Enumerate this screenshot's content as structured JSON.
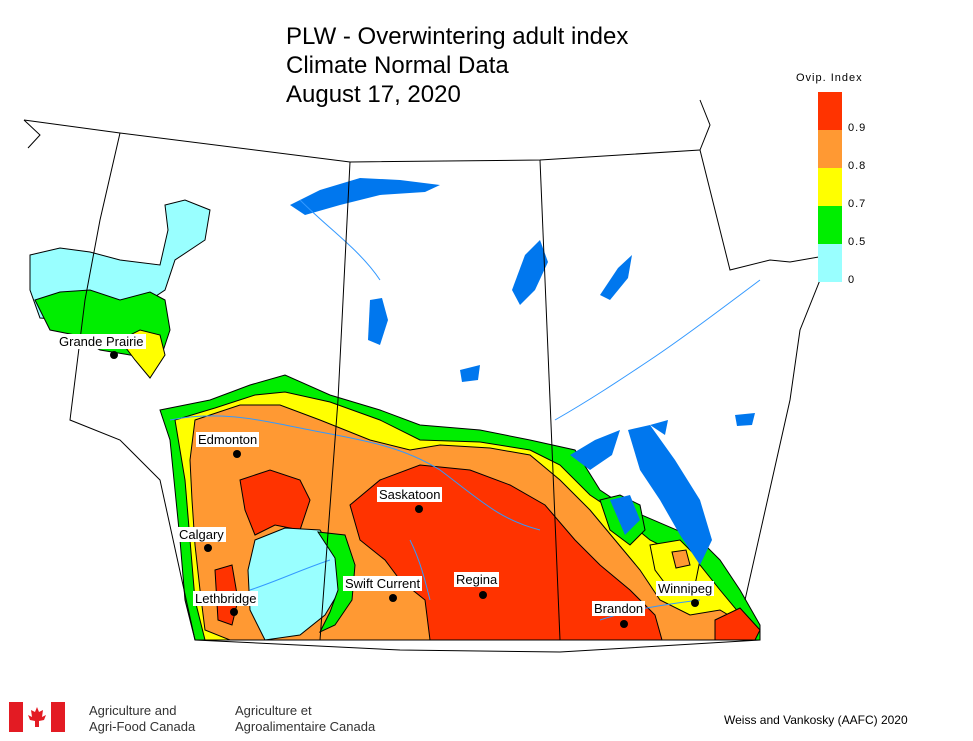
{
  "title": {
    "line1": "PLW - Overwintering adult index",
    "line2": "Climate Normal Data",
    "line3": "August 17, 2020"
  },
  "legend": {
    "title": "Ovip. Index",
    "entries": [
      {
        "label": "0.9",
        "color": "#ff3300"
      },
      {
        "label": "0.8",
        "color": "#ff9933"
      },
      {
        "label": "0.7",
        "color": "#ffff00"
      },
      {
        "label": "0.5",
        "color": "#00ee00"
      },
      {
        "label": "0",
        "color": "#99ffff"
      }
    ]
  },
  "cities": [
    "Grande Prairie",
    "Edmonton",
    "Saskatoon",
    "Calgary",
    "Swift Current",
    "Regina",
    "Lethbridge",
    "Winnipeg",
    "Brandon"
  ],
  "footer": {
    "org_en_1": "Agriculture and",
    "org_en_2": "Agri-Food Canada",
    "org_fr_1": "Agriculture et",
    "org_fr_2": "Agroalimentaire Canada",
    "credit": "Weiss and Vankosky (AAFC) 2020"
  },
  "colors": {
    "water": "#0077ee",
    "river": "#3399ff",
    "border": "#000000"
  }
}
